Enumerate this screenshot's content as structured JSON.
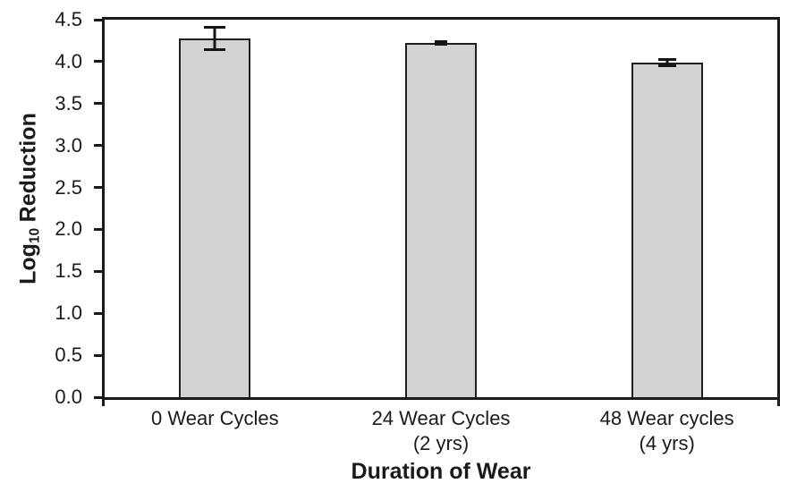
{
  "chart_data": {
    "type": "bar",
    "title": "",
    "xlabel": "Duration of Wear",
    "ylabel": "Log10 Reduction",
    "ylabel_parts": {
      "prefix": "Log",
      "subscript": "10",
      "suffix": "Reduction"
    },
    "categories": [
      "0 Wear Cycles",
      "24 Wear Cycles (2 yrs)",
      "48 Wear cycles (4 yrs)"
    ],
    "category_display": [
      "0 Wear Cycles",
      "24 Wear Cycles\n(2 yrs)",
      "48 Wear cycles\n(4 yrs)"
    ],
    "values": [
      4.28,
      4.22,
      3.99
    ],
    "error_bars": [
      0.15,
      0.03,
      0.05
    ],
    "ylim": [
      0,
      4.5
    ],
    "ytick_step": 0.5,
    "yticks": [
      "0.0",
      "0.5",
      "1.0",
      "1.5",
      "2.0",
      "2.5",
      "3.0",
      "3.5",
      "4.0",
      "4.5"
    ],
    "grid": false,
    "legend_position": "none",
    "colors": {
      "bar_fill": "#d3d3d3",
      "bar_border": "#1f1f1f",
      "axis": "#1a1a1a",
      "error_bar": "#161616",
      "text": "#1a1a1a",
      "background": "#ffffff"
    }
  }
}
